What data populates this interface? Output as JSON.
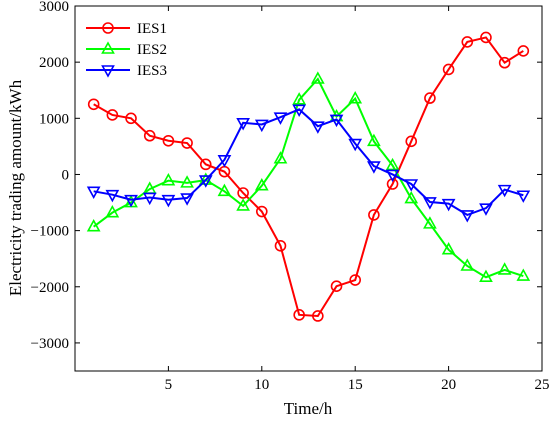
{
  "chart_data": {
    "type": "line",
    "title": "",
    "xlabel": "Time/h",
    "ylabel": "Electricity trading amount/kWh",
    "xlim": [
      0,
      25
    ],
    "ylim": [
      -3500,
      3000
    ],
    "xticks": [
      5,
      10,
      15,
      20,
      25
    ],
    "yticks": [
      3000,
      2000,
      1000,
      0,
      -1000,
      -2000,
      -3000
    ],
    "ytick_labels": [
      "3000",
      "2000",
      "1000",
      "0",
      "−1000",
      "−2000",
      "−3000"
    ],
    "grid": false,
    "legend_position": "top-left",
    "x": [
      1,
      2,
      3,
      4,
      5,
      6,
      7,
      8,
      9,
      10,
      11,
      12,
      13,
      14,
      15,
      16,
      17,
      18,
      19,
      20,
      21,
      22,
      23,
      24
    ],
    "series": [
      {
        "name": "IES1",
        "color": "#ff0000",
        "marker": "circle",
        "values": [
          1250,
          1060,
          1000,
          690,
          600,
          560,
          180,
          50,
          -330,
          -660,
          -1270,
          -2500,
          -2520,
          -1990,
          -1880,
          -720,
          -170,
          590,
          1360,
          1870,
          2360,
          2440,
          1990,
          2200
        ]
      },
      {
        "name": "IES2",
        "color": "#00ff00",
        "marker": "triangle-up",
        "values": [
          -930,
          -680,
          -500,
          -260,
          -110,
          -150,
          -100,
          -300,
          -560,
          -200,
          280,
          1330,
          1700,
          1030,
          1350,
          590,
          160,
          -430,
          -880,
          -1340,
          -1630,
          -1830,
          -1700,
          -1810
        ]
      },
      {
        "name": "IES3",
        "color": "#0000ff",
        "marker": "triangle-down",
        "values": [
          -300,
          -360,
          -450,
          -410,
          -450,
          -420,
          -100,
          260,
          920,
          890,
          1020,
          1160,
          860,
          980,
          550,
          150,
          0,
          -170,
          -490,
          -520,
          -720,
          -600,
          -270,
          -370
        ]
      }
    ]
  }
}
